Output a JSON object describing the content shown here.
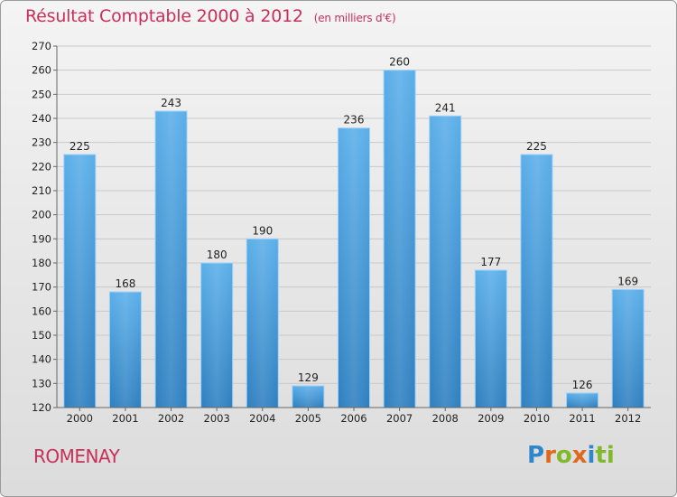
{
  "chart_data": {
    "type": "bar",
    "title": "Résultat Comptable 2000 à 2012",
    "unit": "(en milliers d'€)",
    "categories": [
      "2000",
      "2001",
      "2002",
      "2003",
      "2004",
      "2005",
      "2006",
      "2007",
      "2008",
      "2009",
      "2010",
      "2011",
      "2012"
    ],
    "values": [
      225,
      168,
      243,
      180,
      190,
      129,
      236,
      260,
      241,
      177,
      225,
      126,
      169
    ],
    "xlabel": "",
    "ylabel": "",
    "ylim": [
      120,
      270
    ],
    "yticks": [
      120,
      130,
      140,
      150,
      160,
      170,
      180,
      190,
      200,
      210,
      220,
      230,
      240,
      250,
      260,
      270
    ],
    "bar_color": "#3d93d6"
  },
  "commune": "ROMENAY",
  "logo": "Proxiti",
  "logo_chars": [
    "P",
    "r",
    "o",
    "x",
    "i",
    "ti"
  ]
}
